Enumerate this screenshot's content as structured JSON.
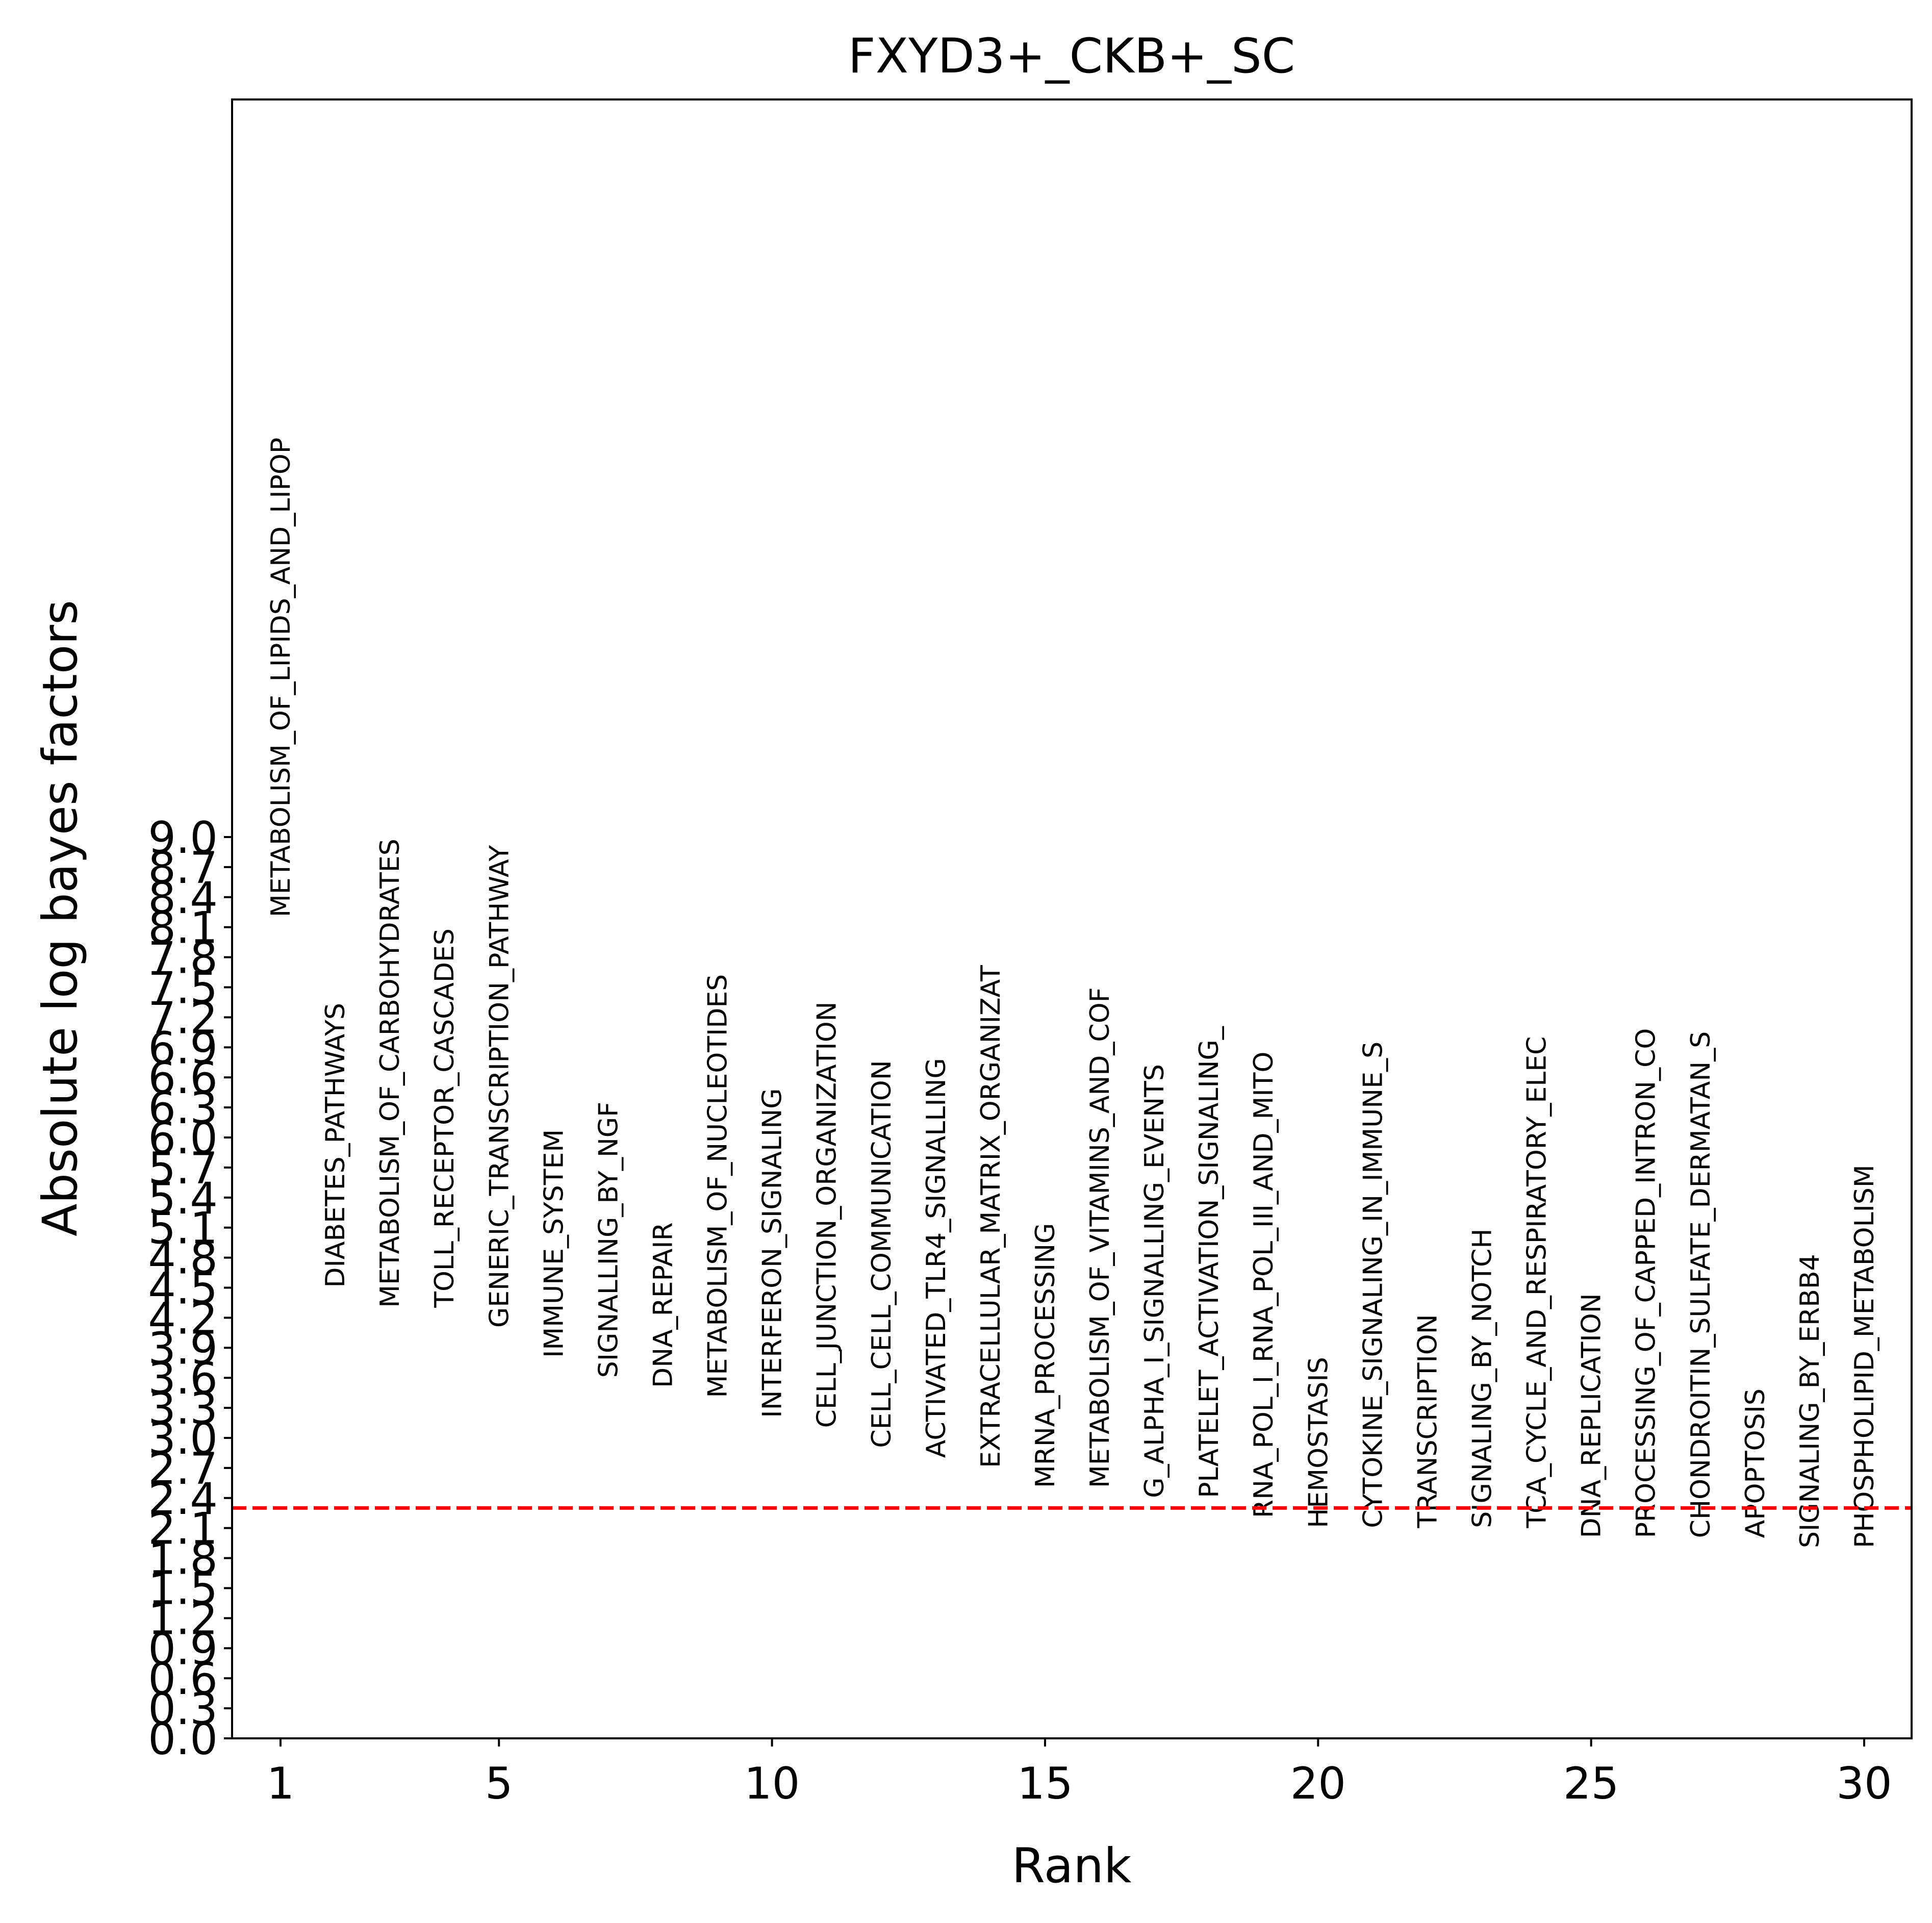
{
  "chart_data": {
    "type": "scatter",
    "title": "FXYD3+_CKB+_SC",
    "xlabel": "Rank",
    "ylabel": "Absolute log bayes factors",
    "xlim": [
      0.1,
      31.0
    ],
    "ylim": [
      0.0,
      9.0
    ],
    "x_ticks": [
      1,
      5,
      10,
      15,
      20,
      25,
      30
    ],
    "x_tick_labels": [
      "1",
      "5",
      "10",
      "15",
      "20",
      "25",
      "30"
    ],
    "y_tick_values": [
      0.0,
      0.3,
      0.6,
      0.9,
      1.2,
      1.5,
      1.8,
      2.1,
      2.4,
      2.7,
      3.0,
      3.3,
      3.6,
      3.9,
      4.2,
      4.5,
      4.8,
      5.1,
      5.4,
      5.7,
      6.0,
      6.3,
      6.6,
      6.9,
      7.2,
      7.5,
      7.8,
      8.1,
      8.4,
      8.7,
      9.0
    ],
    "y_tick_labels": [
      "0.0",
      "0.3",
      "0.6",
      "0.9",
      "1.2",
      "1.5",
      "1.8",
      "2.1",
      "2.4",
      "2.7",
      "3.0",
      "3.3",
      "3.6",
      "3.9",
      "4.2",
      "4.5",
      "4.8",
      "5.1",
      "5.4",
      "5.7",
      "6.0",
      "6.3",
      "6.6",
      "6.9",
      "7.2",
      "7.5",
      "7.8",
      "8.1",
      "8.4",
      "8.7",
      "9.0"
    ],
    "threshold": {
      "value": 2.3,
      "color": "#ff0000",
      "style": "dashed"
    },
    "points": [
      {
        "rank": 1,
        "value": 8.2,
        "label": "METABOLISM_OF_LIPIDS_AND_LIPOP"
      },
      {
        "rank": 2,
        "value": 4.5,
        "label": "DIABETES_PATHWAYS"
      },
      {
        "rank": 3,
        "value": 4.3,
        "label": "METABOLISM_OF_CARBOHYDRATES"
      },
      {
        "rank": 4,
        "value": 4.3,
        "label": "TOLL_RECEPTOR_CASCADES"
      },
      {
        "rank": 5,
        "value": 4.1,
        "label": "GENERIC_TRANSCRIPTION_PATHWAY"
      },
      {
        "rank": 6,
        "value": 3.8,
        "label": "IMMUNE_SYSTEM"
      },
      {
        "rank": 7,
        "value": 3.6,
        "label": "SIGNALLING_BY_NGF"
      },
      {
        "rank": 8,
        "value": 3.5,
        "label": "DNA_REPAIR"
      },
      {
        "rank": 9,
        "value": 3.4,
        "label": "METABOLISM_OF_NUCLEOTIDES"
      },
      {
        "rank": 10,
        "value": 3.2,
        "label": "INTERFERON_SIGNALING"
      },
      {
        "rank": 11,
        "value": 3.1,
        "label": "CELL_JUNCTION_ORGANIZATION"
      },
      {
        "rank": 12,
        "value": 2.9,
        "label": "CELL_CELL_COMMUNICATION"
      },
      {
        "rank": 13,
        "value": 2.8,
        "label": "ACTIVATED_TLR4_SIGNALLING"
      },
      {
        "rank": 14,
        "value": 2.7,
        "label": "EXTRACELLULAR_MATRIX_ORGANIZAT"
      },
      {
        "rank": 15,
        "value": 2.5,
        "label": "MRNA_PROCESSING"
      },
      {
        "rank": 16,
        "value": 2.5,
        "label": "METABOLISM_OF_VITAMINS_AND_COF"
      },
      {
        "rank": 17,
        "value": 2.4,
        "label": "G_ALPHA_I_SIGNALLING_EVENTS"
      },
      {
        "rank": 18,
        "value": 2.4,
        "label": "PLATELET_ACTIVATION_SIGNALING_"
      },
      {
        "rank": 19,
        "value": 2.2,
        "label": "RNA_POL_I_RNA_POL_III_AND_MITO"
      },
      {
        "rank": 20,
        "value": 2.1,
        "label": "HEMOSTASIS"
      },
      {
        "rank": 21,
        "value": 2.1,
        "label": "CYTOKINE_SIGNALING_IN_IMMUNE_S"
      },
      {
        "rank": 22,
        "value": 2.1,
        "label": "TRANSCRIPTION"
      },
      {
        "rank": 23,
        "value": 2.1,
        "label": "SIGNALING_BY_NOTCH"
      },
      {
        "rank": 24,
        "value": 2.1,
        "label": "TCA_CYCLE_AND_RESPIRATORY_ELEC"
      },
      {
        "rank": 25,
        "value": 2.0,
        "label": "DNA_REPLICATION"
      },
      {
        "rank": 26,
        "value": 2.0,
        "label": "PROCESSING_OF_CAPPED_INTRON_CO"
      },
      {
        "rank": 27,
        "value": 2.0,
        "label": "CHONDROITIN_SULFATE_DERMATAN_S"
      },
      {
        "rank": 28,
        "value": 2.0,
        "label": "APOPTOSIS"
      },
      {
        "rank": 29,
        "value": 1.9,
        "label": "SIGNALING_BY_ERBB4"
      },
      {
        "rank": 30,
        "value": 1.9,
        "label": "PHOSPHOLIPID_METABOLISM"
      }
    ],
    "grid": false,
    "legend": "none",
    "colors": {
      "axis": "#000000",
      "text": "#000000",
      "background": "#ffffff"
    }
  }
}
